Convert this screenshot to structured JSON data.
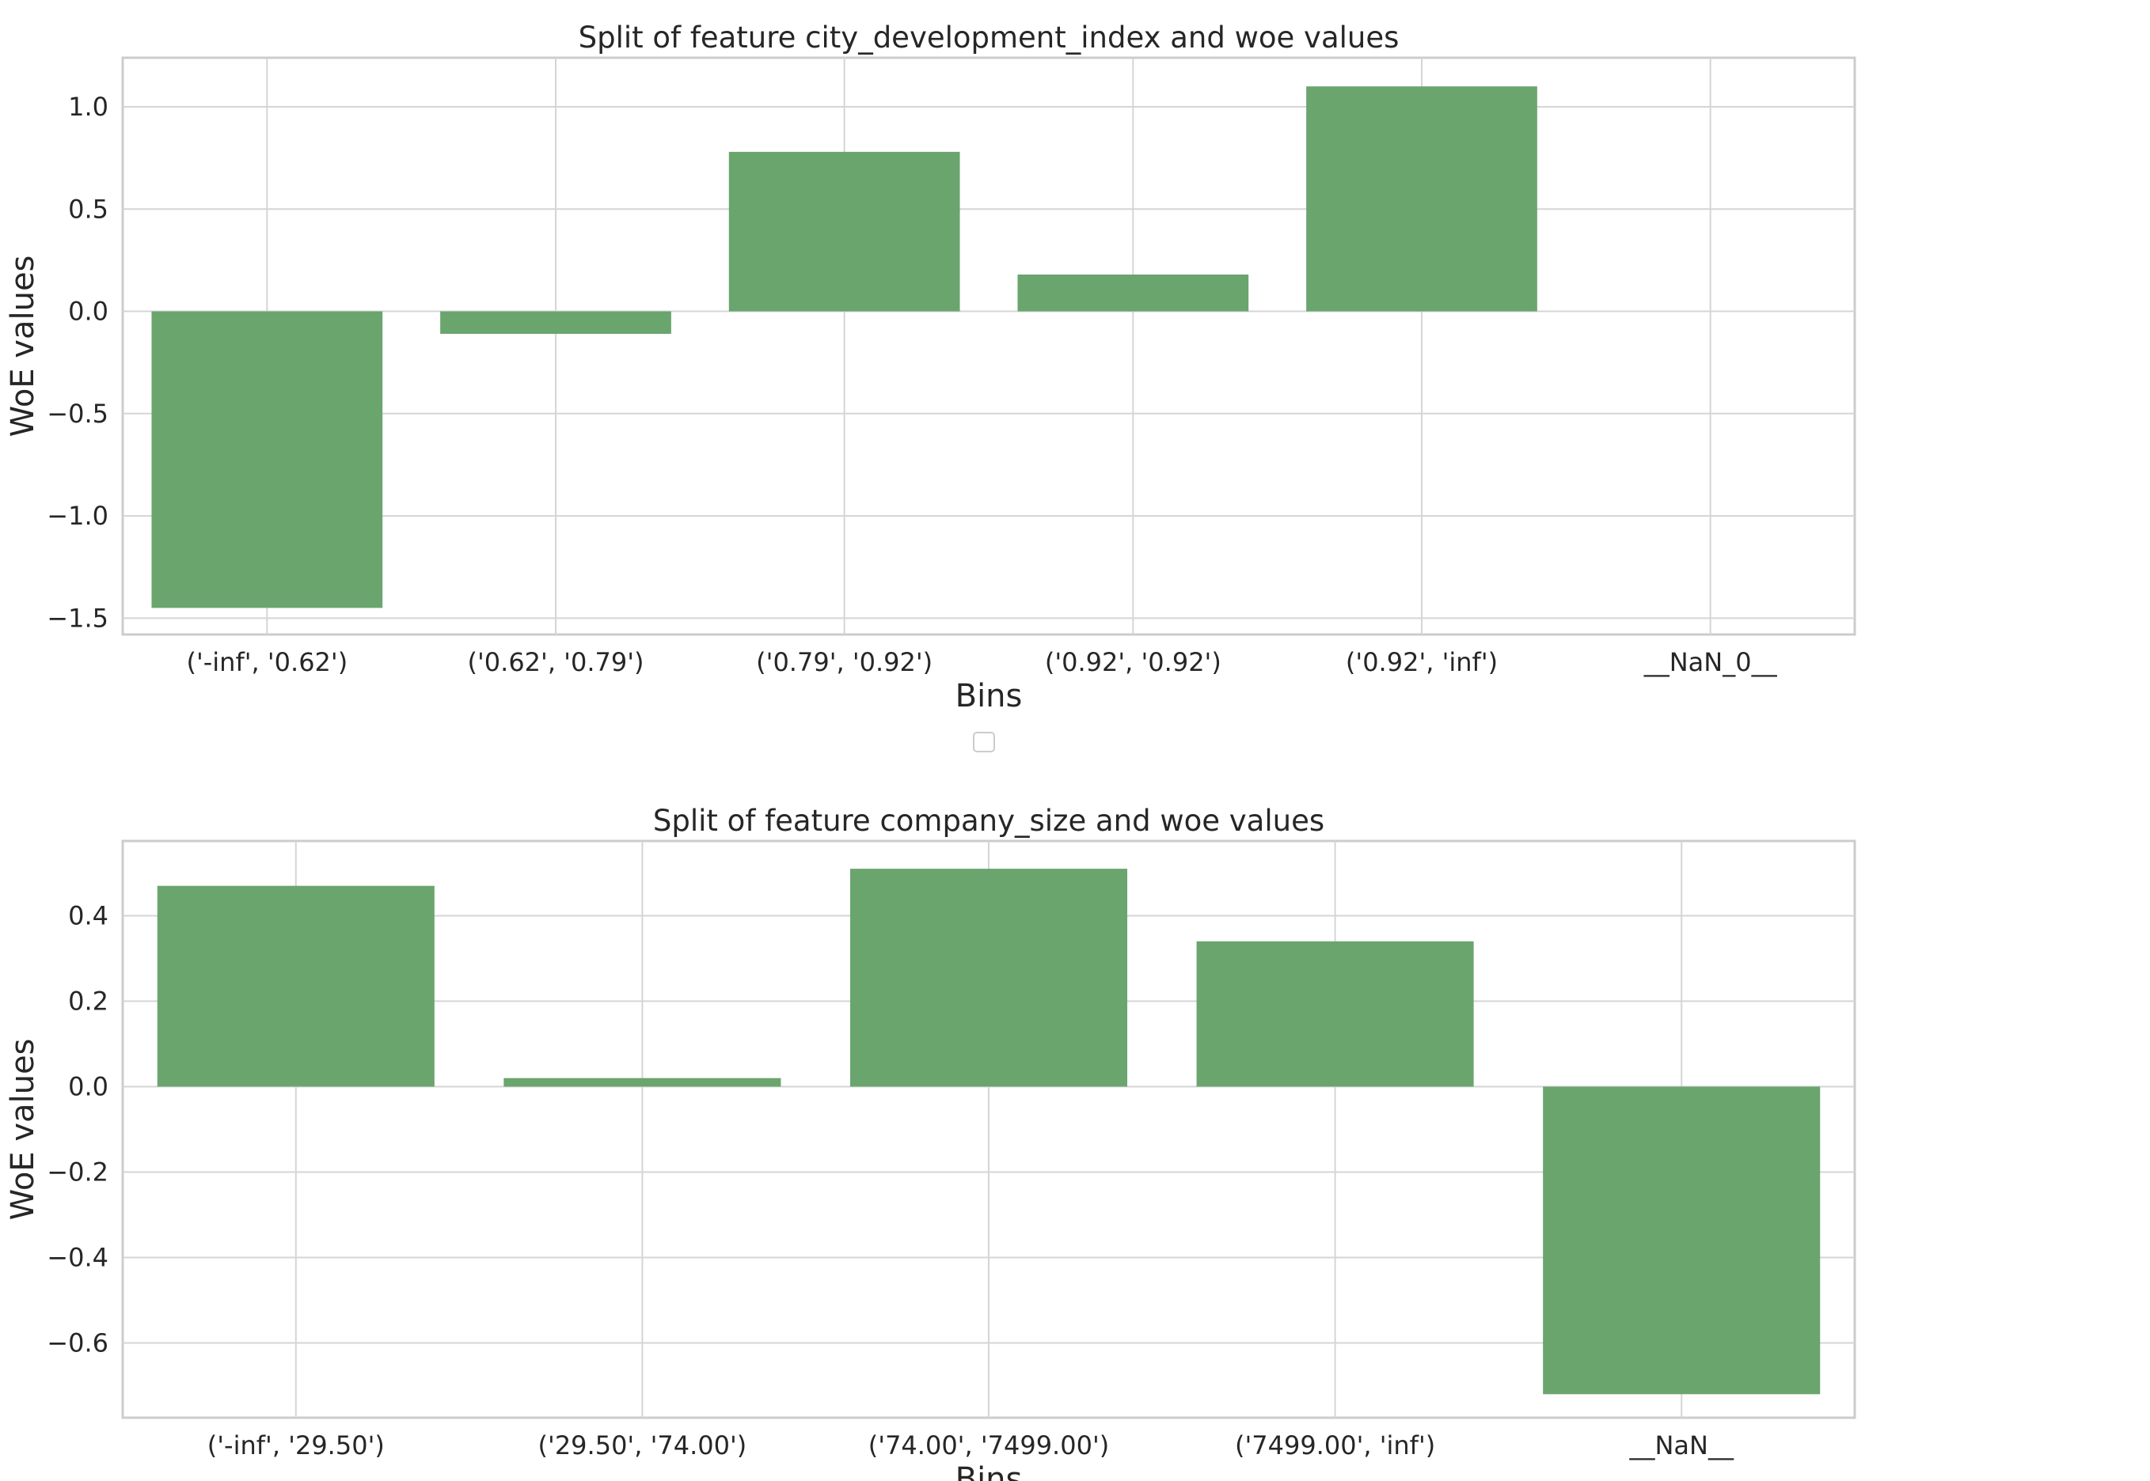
{
  "chart_data": [
    {
      "type": "bar",
      "title": "Split of feature city_development_index and woe values",
      "xlabel": "Bins",
      "ylabel": "WoE values",
      "categories": [
        "('-inf', '0.62')",
        "('0.62', '0.79')",
        "('0.79', '0.92')",
        "('0.92', '0.92')",
        "('0.92', 'inf')",
        "__NaN_0__"
      ],
      "values": [
        -1.45,
        -0.11,
        0.78,
        0.18,
        1.1,
        0.0
      ],
      "ylim": [
        -1.58,
        1.24
      ],
      "yticks": [
        -1.5,
        -1.0,
        -0.5,
        0.0,
        0.5,
        1.0
      ],
      "ytick_labels": [
        "−1.5",
        "−1.0",
        "−0.5",
        "0.0",
        "0.5",
        "1.0"
      ],
      "grid": true,
      "colors": {
        "bar": "#6aa56e"
      }
    },
    {
      "type": "bar",
      "title": "Split of feature company_size and woe values",
      "xlabel": "Bins",
      "ylabel": "WoE values",
      "categories": [
        "('-inf', '29.50')",
        "('29.50', '74.00')",
        "('74.00', '7499.00')",
        "('7499.00', 'inf')",
        "__NaN__"
      ],
      "values": [
        0.47,
        0.02,
        0.51,
        0.34,
        -0.72
      ],
      "ylim": [
        -0.775,
        0.575
      ],
      "yticks": [
        -0.6,
        -0.4,
        -0.2,
        0.0,
        0.2,
        0.4
      ],
      "ytick_labels": [
        "−0.6",
        "−0.4",
        "−0.2",
        "0.0",
        "0.2",
        "0.4"
      ],
      "grid": true,
      "colors": {
        "bar": "#6aa56e"
      }
    }
  ]
}
